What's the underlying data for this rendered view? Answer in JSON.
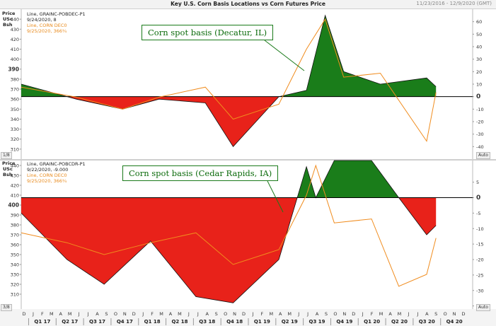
{
  "header": {
    "title": "Key U.S. Corn Basis Locations vs Corn Futures Price",
    "date_range": "11/23/2016 - 12/9/2020 (GMT)"
  },
  "callouts": {
    "decatur": "Corn spot basis (Decatur, IL)",
    "cedar": "Corn spot basis (Cedar Rapids, IA)"
  },
  "panels": [
    {
      "price_label": "Price",
      "unit1": "USc",
      "unit2": "Bsh",
      "legend": [
        "Line, GRAINC-POBDEC-P1",
        "9/24/2020, 8",
        "Line, CORN DEC0",
        "9/25/2020, 366¾"
      ],
      "left_axis": {
        "min": 300,
        "max": 450,
        "ticks": [
          310,
          320,
          330,
          340,
          350,
          360,
          370,
          380,
          390,
          400,
          410,
          420,
          430,
          440
        ],
        "bold": [
          390
        ]
      },
      "right_axis": {
        "min": -50,
        "max": 70,
        "ticks": [
          60,
          50,
          40,
          30,
          20,
          10,
          0,
          -10,
          -20,
          -30,
          -40
        ],
        "bold": [
          0
        ]
      },
      "corner_left": "1/8",
      "corner_right": "Auto"
    },
    {
      "price_label": "Price",
      "unit1": "USc",
      "unit2": "Bsh",
      "legend": [
        "Line, GRAINC-POBCDR-P1",
        "9/22/2020, -9.000",
        "Line, CORN DEC0",
        "9/25/2020, 366¾"
      ],
      "left_axis": {
        "min": 295,
        "max": 445,
        "ticks": [
          310,
          320,
          330,
          340,
          350,
          360,
          370,
          380,
          390,
          400,
          410,
          420,
          430,
          440
        ],
        "bold": [
          400
        ]
      },
      "right_axis": {
        "min": -36,
        "max": 12,
        "ticks": [
          5,
          0,
          -5,
          -10,
          -15,
          -20,
          -25,
          -30,
          -35
        ],
        "bold": [
          0
        ]
      },
      "corner_left": "3/8",
      "corner_right": "Auto"
    }
  ],
  "x_axis": {
    "months": [
      "D",
      "J",
      "F",
      "M",
      "A",
      "M",
      "J",
      "J",
      "A",
      "S",
      "O",
      "N",
      "D",
      "J",
      "F",
      "M",
      "A",
      "M",
      "J",
      "J",
      "A",
      "S",
      "O",
      "N",
      "D",
      "J",
      "F",
      "M",
      "A",
      "M",
      "J",
      "J",
      "A",
      "S",
      "O",
      "N",
      "D",
      "J",
      "F",
      "M",
      "A",
      "M",
      "J",
      "J",
      "A",
      "S",
      "O",
      "N",
      "D"
    ],
    "quarters": [
      "Q1 17",
      "Q2 17",
      "Q3 17",
      "Q4 17",
      "Q1 18",
      "Q2 18",
      "Q3 18",
      "Q4 18",
      "Q1 19",
      "Q2 19",
      "Q3 19",
      "Q4 19",
      "Q1 20",
      "Q2 20",
      "Q3 20",
      "Q4 20"
    ]
  },
  "chart_data": [
    {
      "type": "area",
      "title": "Corn spot basis (Decatur, IL)",
      "x": [
        "2016-12",
        "2017-06",
        "2017-11",
        "2018-03",
        "2018-08",
        "2018-11",
        "2019-04",
        "2019-07",
        "2019-09",
        "2019-11",
        "2020-03",
        "2020-08",
        "2020-09"
      ],
      "series": [
        {
          "name": "Line, GRAINC-POBDEC-P1",
          "values": [
            10,
            -2,
            -10,
            -2,
            -5,
            -40,
            0,
            5,
            65,
            20,
            10,
            15,
            8
          ]
        },
        {
          "name": "Line, CORN DEC0",
          "values": [
            372,
            362,
            350,
            362,
            372,
            340,
            355,
            410,
            440,
            382,
            386,
            318,
            366.75
          ]
        }
      ],
      "ylim_price": [
        300,
        450
      ],
      "ylim_basis": [
        -50,
        70
      ]
    },
    {
      "type": "area",
      "title": "Corn spot basis (Cedar Rapids, IA)",
      "x": [
        "2016-12",
        "2017-05",
        "2017-09",
        "2018-02",
        "2018-07",
        "2018-11",
        "2019-04",
        "2019-07",
        "2019-08",
        "2019-10",
        "2020-02",
        "2020-05",
        "2020-08",
        "2020-09"
      ],
      "series": [
        {
          "name": "Line, GRAINC-POBCDR-P1",
          "values": [
            -5,
            -20,
            -28,
            -14,
            -32,
            -34,
            -20,
            10,
            0,
            12,
            12,
            0,
            -12,
            -9
          ]
        },
        {
          "name": "Line, CORN DEC0",
          "values": [
            372,
            362,
            350,
            362,
            372,
            340,
            355,
            410,
            440,
            382,
            386,
            318,
            330,
            366.75
          ]
        }
      ],
      "ylim_price": [
        295,
        445
      ],
      "ylim_basis": [
        -36,
        12
      ]
    }
  ]
}
